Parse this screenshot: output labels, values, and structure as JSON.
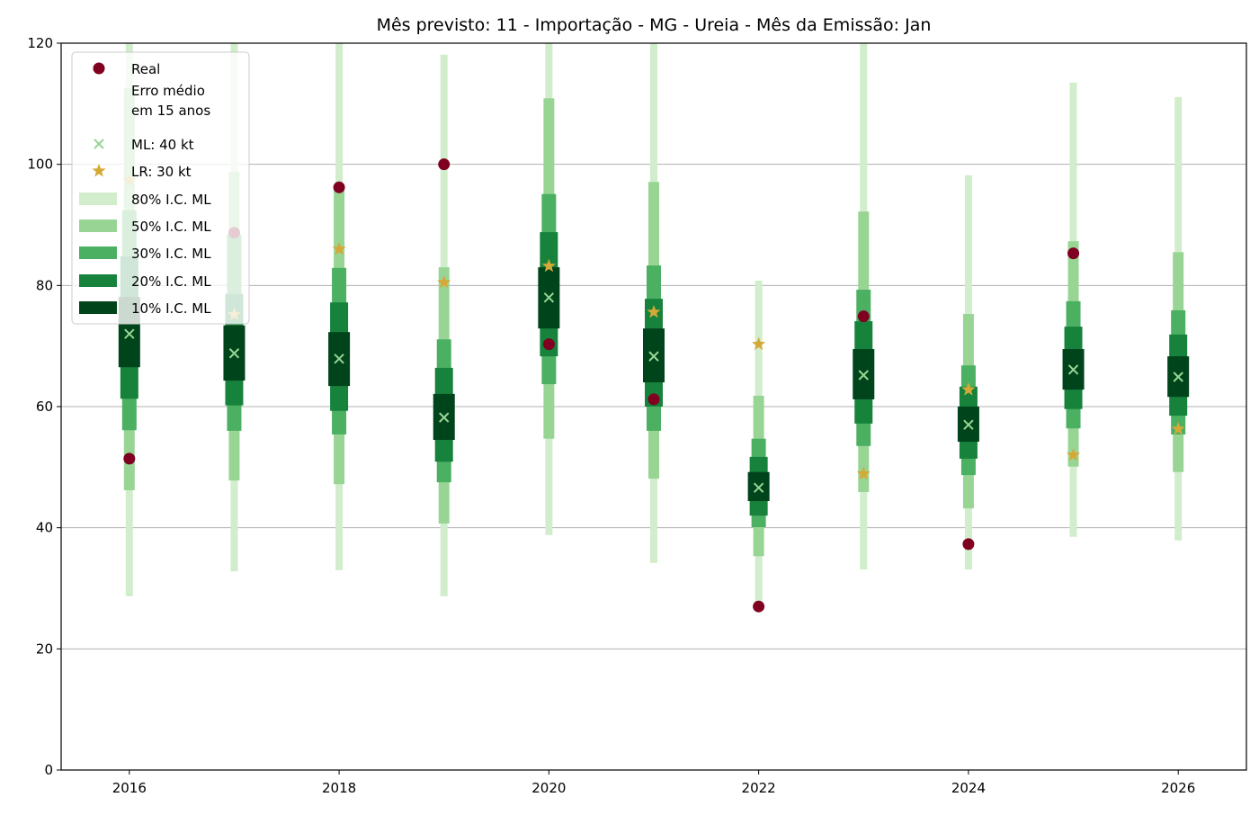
{
  "chart_data": {
    "type": "interval",
    "title": "Mês previsto: 11 - Importação - MG - Ureia - Mês da Emissão: Jan",
    "xlabel": "",
    "ylabel": "",
    "xlim": [
      2015.35,
      2026.65
    ],
    "ylim": [
      0,
      120
    ],
    "xticks": [
      "2016",
      "2018",
      "2020",
      "2022",
      "2024",
      "2026"
    ],
    "yticks": [
      "0",
      "20",
      "40",
      "60",
      "80",
      "100",
      "120"
    ],
    "grid": "horizontal",
    "legend_position": "top-left",
    "legend": [
      "Real",
      "Erro médio\nem 15 anos",
      "ML: 40 kt",
      "LR: 30 kt",
      "80% I.C. ML",
      "50% I.C. ML",
      "30% I.C. ML",
      "20% I.C. ML",
      "10% I.C. ML"
    ],
    "colors": {
      "real": "#7f0020",
      "ml": "#98d594",
      "lr": "#d4a937",
      "ci80": "#d1edcb",
      "ci50": "#98d594",
      "ci30": "#4bb062",
      "ci20": "#16823c",
      "ci10": "#00441b"
    },
    "x": [
      2016,
      2017,
      2018,
      2019,
      2020,
      2021,
      2022,
      2023,
      2024,
      2025,
      2026
    ],
    "ml": [
      72.0,
      68.8,
      67.9,
      58.2,
      78.0,
      68.3,
      46.6,
      65.2,
      57.0,
      66.1,
      64.9
    ],
    "lr": [
      97.3,
      75.2,
      86.0,
      80.5,
      83.2,
      75.6,
      70.3,
      48.9,
      62.8,
      52.0,
      56.3
    ],
    "real": [
      51.4,
      88.7,
      96.2,
      100.0,
      70.3,
      61.2,
      27.0,
      74.9,
      37.3,
      85.3,
      null
    ],
    "ci80": [
      [
        28.7,
        120
      ],
      [
        32.8,
        120
      ],
      [
        33.0,
        120
      ],
      [
        28.7,
        118.1
      ],
      [
        38.8,
        120
      ],
      [
        34.2,
        120
      ],
      [
        27.6,
        80.8
      ],
      [
        33.1,
        120
      ],
      [
        33.1,
        98.2
      ],
      [
        38.5,
        113.5
      ],
      [
        37.9,
        111.1
      ]
    ],
    "ci50": [
      [
        46.2,
        112.6
      ],
      [
        47.8,
        98.8
      ],
      [
        47.2,
        96.2
      ],
      [
        40.7,
        83.0
      ],
      [
        54.7,
        110.9
      ],
      [
        48.1,
        97.1
      ],
      [
        35.3,
        61.8
      ],
      [
        45.9,
        92.2
      ],
      [
        43.2,
        75.3
      ],
      [
        50.1,
        87.3
      ],
      [
        49.2,
        85.5
      ]
    ],
    "ci30": [
      [
        56.1,
        92.4
      ],
      [
        56.0,
        88.4
      ],
      [
        55.4,
        82.9
      ],
      [
        47.5,
        71.1
      ],
      [
        63.7,
        95.1
      ],
      [
        56.0,
        83.3
      ],
      [
        40.1,
        54.7
      ],
      [
        53.5,
        79.3
      ],
      [
        48.7,
        66.8
      ],
      [
        56.4,
        77.4
      ],
      [
        55.4,
        75.9
      ]
    ],
    "ci20": [
      [
        61.3,
        84.8
      ],
      [
        60.2,
        78.6
      ],
      [
        59.3,
        77.2
      ],
      [
        50.9,
        66.4
      ],
      [
        68.3,
        88.8
      ],
      [
        60.0,
        77.8
      ],
      [
        42.0,
        51.7
      ],
      [
        57.2,
        74.1
      ],
      [
        51.4,
        63.3
      ],
      [
        59.6,
        73.2
      ],
      [
        58.5,
        71.9
      ]
    ],
    "ci10": [
      [
        66.5,
        78.1
      ],
      [
        64.3,
        73.4
      ],
      [
        63.4,
        72.3
      ],
      [
        54.5,
        62.1
      ],
      [
        72.9,
        83.0
      ],
      [
        64.0,
        72.9
      ],
      [
        44.4,
        49.2
      ],
      [
        61.2,
        69.5
      ],
      [
        54.2,
        60.0
      ],
      [
        62.8,
        69.5
      ],
      [
        61.6,
        68.3
      ]
    ]
  }
}
